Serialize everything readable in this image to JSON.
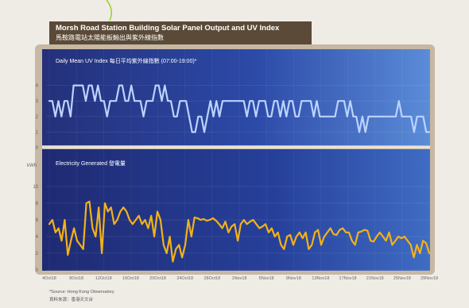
{
  "title": {
    "en": "Morsh Road Station Building Solar Panel Output and UV Index",
    "zh": "馬鞍路電站太陽能板輸出與紫外線指數"
  },
  "source": {
    "line1": "*Source: Hong Kong Observatory",
    "line2": "資料來源：香港天文台"
  },
  "chart_data": [
    {
      "type": "line",
      "title": "Daily Mean UV Index 每日平均紫外線指數 (07:00-19:00)*",
      "ylim": [
        0,
        5
      ],
      "yticks": [
        "0",
        "1",
        "2",
        "3",
        "4"
      ],
      "ylabel": "",
      "grid": true,
      "color": "#bcd3ff",
      "series": [
        {
          "values": [
            3,
            3,
            2,
            3,
            2,
            3,
            3,
            2,
            4,
            4,
            4,
            4,
            3,
            4,
            4,
            3,
            4,
            3,
            3,
            2,
            3,
            3,
            3,
            4,
            4,
            3,
            3,
            4,
            3,
            3,
            3,
            2,
            3,
            3,
            3,
            4,
            4,
            3,
            4,
            3,
            3,
            2,
            2,
            3,
            3,
            3,
            2,
            1,
            1,
            2,
            2,
            1,
            2,
            3,
            2,
            3,
            2,
            3,
            3,
            3,
            3,
            3,
            3,
            3,
            3,
            2,
            3,
            3,
            2,
            3,
            3,
            3,
            2,
            2,
            3,
            3,
            2,
            3,
            2,
            3,
            3,
            2,
            2,
            3,
            3,
            3,
            3,
            2,
            3,
            2,
            2,
            2,
            2,
            2,
            2,
            3,
            3,
            3,
            2,
            3,
            2,
            2,
            1,
            2,
            1,
            2,
            2,
            2,
            2,
            2,
            2,
            2,
            2,
            2,
            2,
            3,
            2,
            2,
            2,
            2,
            1,
            2,
            2,
            2,
            1,
            1
          ]
        }
      ]
    },
    {
      "type": "line",
      "title": "Electricity Generated 發電量",
      "ylabel": "kWh",
      "ylim": [
        0,
        12
      ],
      "yticks": [
        "0",
        "2",
        "4",
        "6",
        "8",
        "10"
      ],
      "grid": true,
      "color": "#f2b219",
      "x_tick_labels": [
        "4Oct18",
        "8Oct18",
        "12Oct18",
        "16Oct18",
        "20Oct18",
        "24Oct18",
        "28Oct18",
        "1Nov18",
        "5Nov18",
        "9Nov18",
        "13Nov18",
        "17Nov18",
        "21Nov18",
        "25Nov18",
        "29Nov18"
      ],
      "series": [
        {
          "values": [
            5.5,
            6,
            4.5,
            5,
            3.5,
            6,
            1.8,
            3.5,
            5,
            3.5,
            3,
            2.5,
            8,
            8.2,
            5,
            4,
            7.5,
            2,
            8,
            7,
            7.5,
            5.5,
            6,
            7,
            7.5,
            7,
            6,
            5.5,
            6,
            6.5,
            5.5,
            6,
            5,
            6.5,
            4,
            7,
            6,
            3,
            2,
            4,
            1,
            2.5,
            3,
            1.5,
            3,
            6,
            4,
            6.3,
            6.2,
            6,
            6.1,
            5.9,
            6,
            6.2,
            5.9,
            5.5,
            5,
            5.8,
            4.5,
            5.2,
            5.5,
            3.5,
            5.5,
            6,
            5.5,
            5.8,
            6,
            5.5,
            5,
            5.2,
            5.5,
            4.5,
            5,
            4,
            4.5,
            3,
            2.5,
            4,
            4.2,
            3,
            4,
            4.5,
            3.8,
            4.5,
            2.5,
            3,
            4.5,
            4.8,
            3,
            4,
            4.5,
            5,
            4.3,
            4.2,
            4.8,
            5,
            4.5,
            4.5,
            3.5,
            3,
            4.5,
            4.6,
            4.8,
            4.7,
            3.5,
            3.4,
            4,
            4.5,
            4,
            3.5,
            4.5,
            3,
            3.5,
            4,
            3.8,
            4,
            3.5,
            3,
            1.5,
            3,
            2,
            3.5,
            3.2,
            2
          ]
        }
      ]
    }
  ]
}
